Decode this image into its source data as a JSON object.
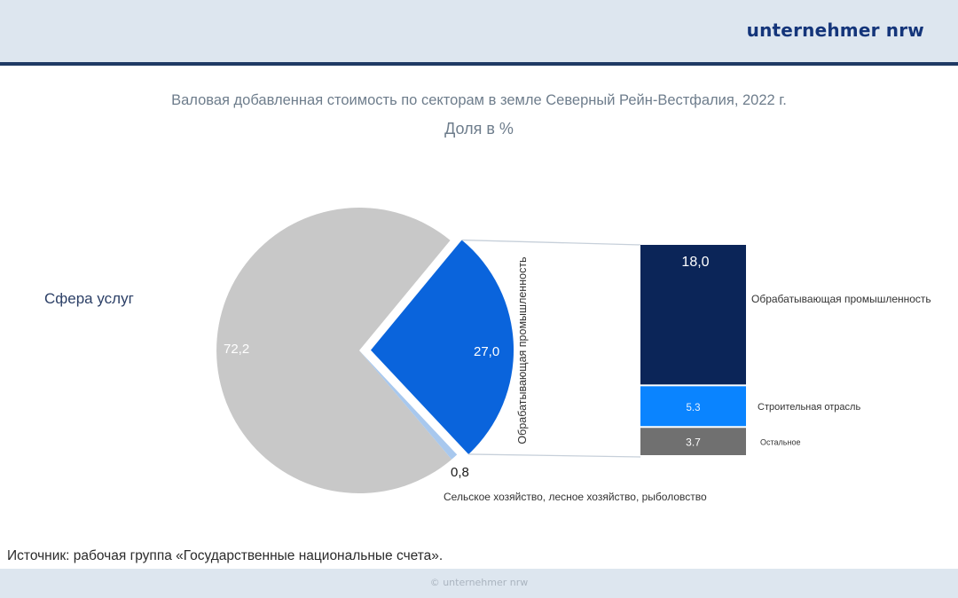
{
  "header": {
    "brand": "unternehmer nrw"
  },
  "chart_data": {
    "type": "pie",
    "title": "Валовая добавленная стоимость по секторам в земле Северный Рейн-Вестфалия, 2022 г.",
    "subtitle": "Доля в %",
    "slices": [
      {
        "label": "Сфера услуг",
        "value": 72.2,
        "value_label": "72,2",
        "color": "#c8c8c8"
      },
      {
        "label": "Обрабатывающая промышленность",
        "value": 27.0,
        "value_label": "27,0",
        "color": "#0a64dc",
        "exploded": true
      },
      {
        "label": "Сельское хозяйство, лесное хозяйство, рыболовство",
        "value": 0.8,
        "value_label": "0,8",
        "color": "#a8c8ee"
      }
    ],
    "breakdown": {
      "parent": "Обрабатывающая промышленность",
      "type": "stacked_bar",
      "segments": [
        {
          "label": "Обрабатывающая промышленность",
          "value": 18.0,
          "value_label": "18,0",
          "color": "#0b2558"
        },
        {
          "label": "Строительная отрасль",
          "value": 5.3,
          "value_label": "5.3",
          "color": "#0a84ff"
        },
        {
          "label": "Остальное",
          "value": 3.7,
          "value_label": "3.7",
          "color": "#707070"
        }
      ]
    }
  },
  "source": "Источник: рабочая группа «Государственные национальные счета».",
  "footer": "© unternehmer nrw"
}
